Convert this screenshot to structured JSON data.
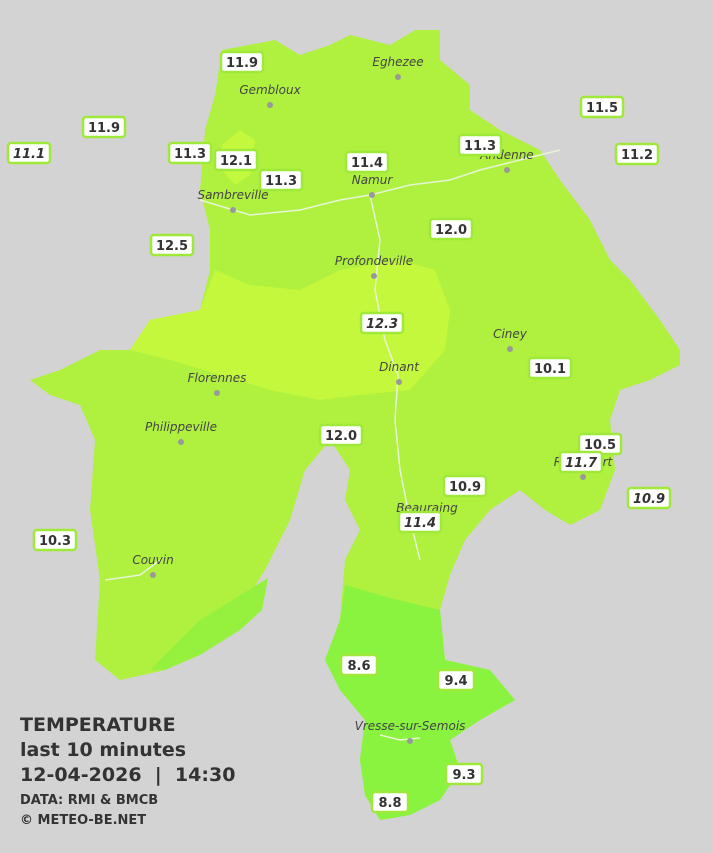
{
  "legend": {
    "title": "TEMPERATURE",
    "subtitle": "last 10 minutes",
    "datetime": "12-04-2026  |  14:30",
    "source": "DATA: RMI & BMCB",
    "credit": "© METEO-BE.NET"
  },
  "towns": [
    "Eghezee",
    "Gembloux",
    "Andenne",
    "Namur",
    "Sambreville",
    "Profondeville",
    "Ciney",
    "Dinant",
    "Florennes",
    "Philippeville",
    "Rochefort",
    "Beauraing",
    "Couvin",
    "Vresse-sur-Semois"
  ],
  "stations": [
    {
      "label": "11.9",
      "italic": false
    },
    {
      "label": "11.9",
      "italic": false
    },
    {
      "label": "11.1",
      "italic": true
    },
    {
      "label": "11.3",
      "italic": false
    },
    {
      "label": "12.1",
      "italic": false
    },
    {
      "label": "11.3",
      "italic": false
    },
    {
      "label": "11.4",
      "italic": false
    },
    {
      "label": "11.3",
      "italic": false
    },
    {
      "label": "11.5",
      "italic": false
    },
    {
      "label": "11.2",
      "italic": false
    },
    {
      "label": "12.0",
      "italic": false
    },
    {
      "label": "12.5",
      "italic": false
    },
    {
      "label": "12.3",
      "italic": true
    },
    {
      "label": "10.1",
      "italic": false
    },
    {
      "label": "12.0",
      "italic": false
    },
    {
      "label": "10.5",
      "italic": false
    },
    {
      "label": "11.7",
      "italic": true
    },
    {
      "label": "10.9",
      "italic": true
    },
    {
      "label": "10.9",
      "italic": false
    },
    {
      "label": "11.4",
      "italic": true
    },
    {
      "label": "10.3",
      "italic": false
    },
    {
      "label": "8.6",
      "italic": false
    },
    {
      "label": "9.4",
      "italic": false
    },
    {
      "label": "9.3",
      "italic": false
    },
    {
      "label": "8.8",
      "italic": false
    }
  ]
}
